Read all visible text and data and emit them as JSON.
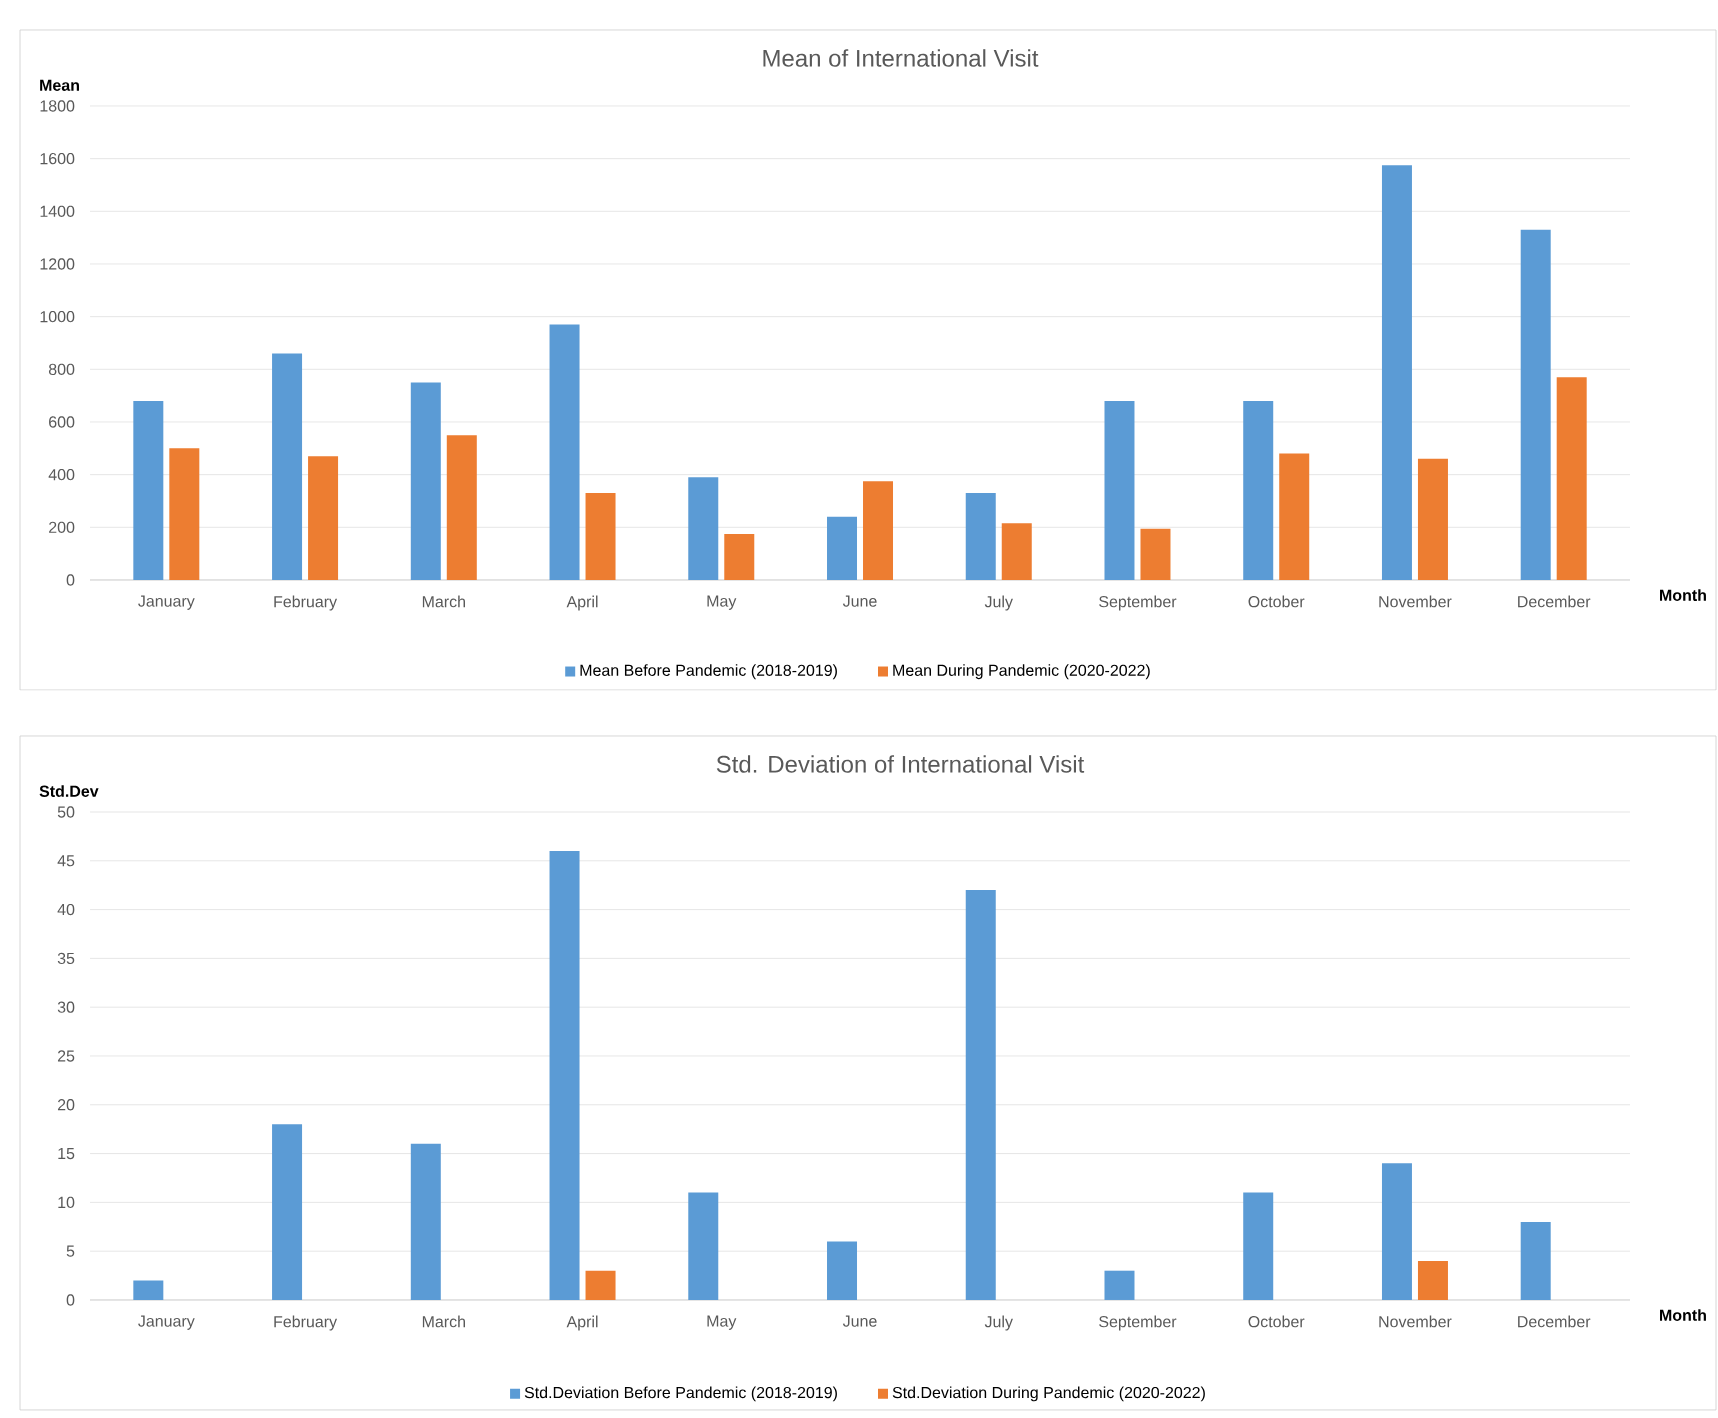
{
  "chart_data": [
    {
      "type": "bar",
      "title": "Mean of International Visit",
      "xlabel": "Month",
      "ylabel": "Mean",
      "categories": [
        "January",
        "February",
        "March",
        "April",
        "May",
        "June",
        "July",
        "September",
        "October",
        "November",
        "December"
      ],
      "series": [
        {
          "name": "Mean Before Pandemic (2018-2019)",
          "color": "#5b9bd5",
          "values": [
            680,
            860,
            750,
            970,
            390,
            240,
            330,
            680,
            680,
            1575,
            1330
          ]
        },
        {
          "name": "Mean During Pandemic (2020-2022)",
          "color": "#ed7d31",
          "values": [
            500,
            470,
            550,
            330,
            175,
            375,
            215,
            195,
            480,
            460,
            770
          ]
        }
      ],
      "ylim": [
        0,
        1800
      ],
      "yticks": [
        0,
        200,
        400,
        600,
        800,
        1000,
        1200,
        1400,
        1600,
        1800
      ],
      "grid": "y",
      "legend": "bottom"
    },
    {
      "type": "bar",
      "title": "Std. Deviation of International Visit",
      "xlabel": "Month",
      "ylabel": "Std.Dev",
      "categories": [
        "January",
        "February",
        "March",
        "April",
        "May",
        "June",
        "July",
        "September",
        "October",
        "November",
        "December"
      ],
      "series": [
        {
          "name": "Std.Deviation Before Pandemic (2018-2019)",
          "color": "#5b9bd5",
          "values": [
            2,
            18,
            16,
            46,
            11,
            6,
            42,
            3,
            11,
            14,
            8
          ]
        },
        {
          "name": "Std.Deviation During Pandemic (2020-2022)",
          "color": "#ed7d31",
          "values": [
            null,
            null,
            null,
            3,
            null,
            null,
            null,
            null,
            null,
            4,
            null
          ]
        }
      ],
      "ylim": [
        0,
        50
      ],
      "yticks": [
        0,
        5,
        10,
        15,
        20,
        25,
        30,
        35,
        40,
        45,
        50
      ],
      "grid": "y",
      "legend": "bottom"
    }
  ]
}
